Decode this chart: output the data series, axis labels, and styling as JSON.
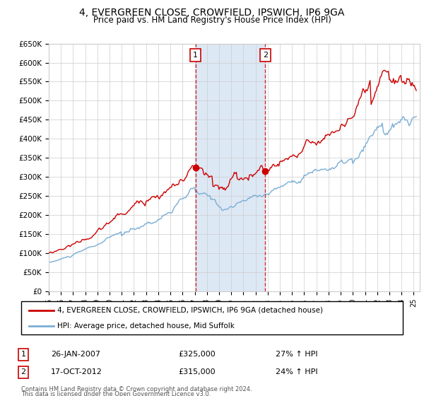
{
  "title": "4, EVERGREEN CLOSE, CROWFIELD, IPSWICH, IP6 9GA",
  "subtitle": "Price paid vs. HM Land Registry's House Price Index (HPI)",
  "legend_line1": "4, EVERGREEN CLOSE, CROWFIELD, IPSWICH, IP6 9GA (detached house)",
  "legend_line2": "HPI: Average price, detached house, Mid Suffolk",
  "footnote1": "Contains HM Land Registry data © Crown copyright and database right 2024.",
  "footnote2": "This data is licensed under the Open Government Licence v3.0.",
  "marker1_label": "1",
  "marker1_date": "26-JAN-2007",
  "marker1_price": "£325,000",
  "marker1_hpi": "27% ↑ HPI",
  "marker1_year": 2007.07,
  "marker2_label": "2",
  "marker2_date": "17-OCT-2012",
  "marker2_price": "£315,000",
  "marker2_hpi": "24% ↑ HPI",
  "marker2_year": 2012.79,
  "sale1_price": 325000,
  "sale2_price": 315000,
  "red_color": "#cc0000",
  "blue_color": "#7aaed6",
  "shade_color": "#dde8f5",
  "ylim_min": 0,
  "ylim_max": 650000,
  "ytick_step": 50000,
  "xmin": 1995.0,
  "xmax": 2025.5,
  "background_color": "#ffffff",
  "grid_color": "#cccccc"
}
